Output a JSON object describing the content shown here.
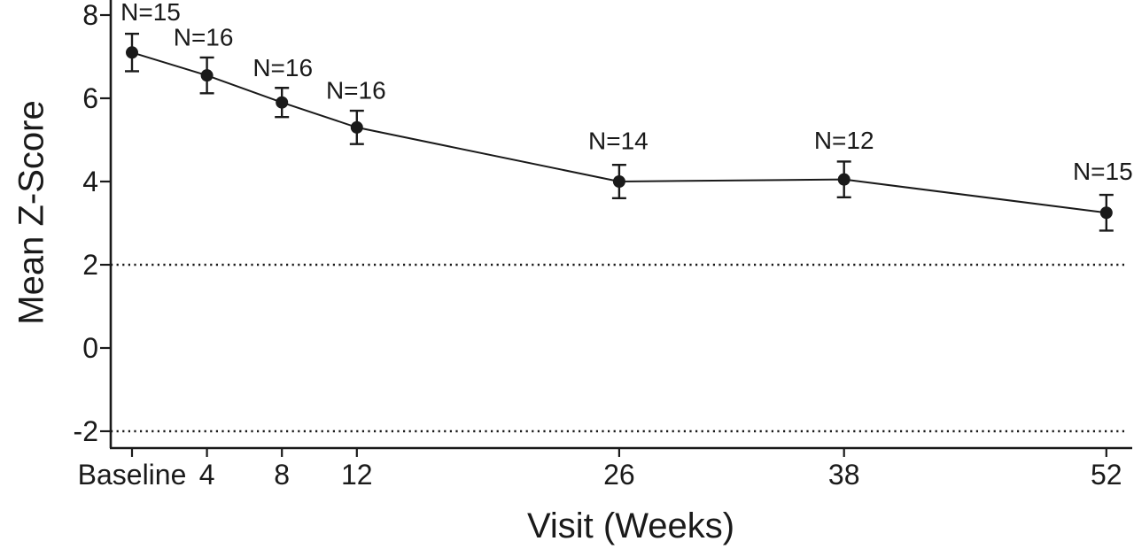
{
  "chart_data": {
    "type": "line",
    "title": "",
    "xlabel": "Visit (Weeks)",
    "ylabel": "Mean Z-Score",
    "x_tick_labels": [
      "Baseline",
      "4",
      "8",
      "12",
      "26",
      "38",
      "52"
    ],
    "x_weeks": [
      0,
      4,
      8,
      12,
      26,
      38,
      52
    ],
    "y_tick_labels": [
      "8",
      "6",
      "4",
      "2",
      "0",
      "-2"
    ],
    "y_ticks": [
      8,
      6,
      4,
      2,
      0,
      -2
    ],
    "ylim": [
      -2.4,
      8.36
    ],
    "xlim_weeks": [
      -1.1,
      53.2
    ],
    "grid": false,
    "legend": false,
    "reference_lines": [
      {
        "y": 2,
        "style": "dotted"
      },
      {
        "y": -2,
        "style": "dotted"
      }
    ],
    "series": [
      {
        "name": "mean-z-score",
        "marker": "filled-circle",
        "error_bars": true,
        "points": [
          {
            "x_label": "Baseline",
            "week": 0,
            "mean": 7.1,
            "error": 0.45,
            "n": 15,
            "n_label": "N=15"
          },
          {
            "x_label": "4",
            "week": 4,
            "mean": 6.55,
            "error": 0.43,
            "n": 16,
            "n_label": "N=16"
          },
          {
            "x_label": "8",
            "week": 8,
            "mean": 5.9,
            "error": 0.35,
            "n": 16,
            "n_label": "N=16"
          },
          {
            "x_label": "12",
            "week": 12,
            "mean": 5.3,
            "error": 0.4,
            "n": 16,
            "n_label": "N=16"
          },
          {
            "x_label": "26",
            "week": 26,
            "mean": 4.0,
            "error": 0.4,
            "n": 14,
            "n_label": "N=14"
          },
          {
            "x_label": "38",
            "week": 38,
            "mean": 4.05,
            "error": 0.43,
            "n": 12,
            "n_label": "N=12"
          },
          {
            "x_label": "52",
            "week": 52,
            "mean": 3.25,
            "error": 0.43,
            "n": 15,
            "n_label": "N=15"
          }
        ]
      }
    ],
    "colors": {
      "ink": "#1a1a1a",
      "background": "#ffffff"
    }
  }
}
